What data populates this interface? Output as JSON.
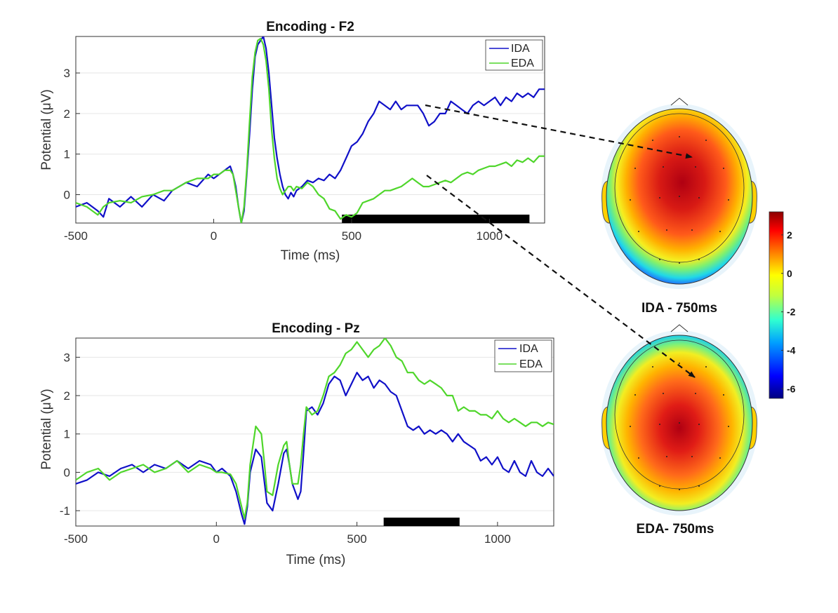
{
  "chart_data": [
    {
      "type": "line",
      "title": "Encoding - F2",
      "xlabel": "Time (ms)",
      "ylabel": "Potential (μV)",
      "xlim": [
        -500,
        1200
      ],
      "ylim": [
        -0.7,
        3.9
      ],
      "xticks": [
        -500,
        0,
        500,
        1000
      ],
      "yticks": [
        0,
        1,
        2,
        3
      ],
      "legend": "top-right",
      "series": [
        {
          "name": "IDA",
          "color": "#1010c8",
          "x": [
            -500,
            -460,
            -420,
            -400,
            -380,
            -340,
            -300,
            -260,
            -220,
            -180,
            -150,
            -100,
            -60,
            -20,
            0,
            20,
            40,
            60,
            70,
            80,
            90,
            100,
            110,
            120,
            130,
            140,
            150,
            160,
            170,
            180,
            190,
            200,
            210,
            220,
            230,
            240,
            250,
            260,
            270,
            280,
            290,
            300,
            320,
            340,
            360,
            380,
            400,
            420,
            440,
            460,
            480,
            500,
            520,
            540,
            560,
            580,
            600,
            620,
            640,
            660,
            680,
            700,
            720,
            740,
            760,
            780,
            800,
            820,
            840,
            860,
            880,
            900,
            920,
            940,
            960,
            980,
            1000,
            1020,
            1040,
            1060,
            1080,
            1100,
            1120,
            1140,
            1160,
            1180,
            1200
          ],
          "y": [
            -0.3,
            -0.2,
            -0.4,
            -0.55,
            -0.1,
            -0.3,
            -0.05,
            -0.3,
            0.0,
            -0.15,
            0.1,
            0.3,
            0.2,
            0.5,
            0.4,
            0.5,
            0.6,
            0.7,
            0.5,
            0.2,
            -0.3,
            -0.7,
            -0.4,
            0.5,
            1.5,
            2.6,
            3.4,
            3.7,
            3.8,
            3.9,
            3.6,
            3.0,
            2.2,
            1.4,
            0.9,
            0.5,
            0.2,
            0.0,
            -0.1,
            0.05,
            -0.05,
            0.1,
            0.2,
            0.35,
            0.3,
            0.4,
            0.35,
            0.5,
            0.4,
            0.6,
            0.9,
            1.2,
            1.3,
            1.5,
            1.8,
            2.0,
            2.3,
            2.2,
            2.1,
            2.3,
            2.1,
            2.2,
            2.2,
            2.2,
            2.0,
            1.7,
            1.8,
            2.0,
            2.0,
            2.3,
            2.2,
            2.1,
            2.0,
            2.2,
            2.3,
            2.2,
            2.3,
            2.4,
            2.2,
            2.4,
            2.3,
            2.5,
            2.4,
            2.5,
            2.4,
            2.6,
            2.6
          ]
        },
        {
          "name": "EDA",
          "color": "#4fd62b",
          "x": [
            -500,
            -460,
            -420,
            -400,
            -380,
            -340,
            -300,
            -260,
            -220,
            -180,
            -150,
            -100,
            -60,
            -20,
            0,
            20,
            40,
            60,
            70,
            80,
            90,
            100,
            110,
            120,
            130,
            140,
            150,
            160,
            170,
            180,
            190,
            200,
            210,
            220,
            230,
            240,
            250,
            260,
            270,
            280,
            290,
            300,
            320,
            340,
            360,
            380,
            400,
            420,
            440,
            460,
            480,
            500,
            520,
            540,
            560,
            580,
            600,
            620,
            640,
            660,
            680,
            700,
            720,
            740,
            760,
            780,
            800,
            820,
            840,
            860,
            880,
            900,
            920,
            940,
            960,
            980,
            1000,
            1020,
            1040,
            1060,
            1080,
            1100,
            1120,
            1140,
            1160,
            1180,
            1200
          ],
          "y": [
            -0.2,
            -0.3,
            -0.5,
            -0.3,
            -0.2,
            -0.15,
            -0.2,
            -0.05,
            0.0,
            0.1,
            0.1,
            0.3,
            0.4,
            0.4,
            0.5,
            0.5,
            0.6,
            0.6,
            0.5,
            0.1,
            -0.3,
            -0.7,
            -0.3,
            0.6,
            1.8,
            2.9,
            3.5,
            3.8,
            3.85,
            3.7,
            3.3,
            2.6,
            1.6,
            0.9,
            0.4,
            0.15,
            0.0,
            0.1,
            0.2,
            0.2,
            0.1,
            0.2,
            0.15,
            0.3,
            0.2,
            0.0,
            -0.1,
            -0.35,
            -0.4,
            -0.6,
            -0.5,
            -0.55,
            -0.45,
            -0.2,
            -0.15,
            -0.1,
            0.0,
            0.1,
            0.1,
            0.15,
            0.2,
            0.3,
            0.4,
            0.3,
            0.2,
            0.2,
            0.25,
            0.3,
            0.35,
            0.3,
            0.4,
            0.5,
            0.55,
            0.5,
            0.6,
            0.65,
            0.7,
            0.7,
            0.75,
            0.8,
            0.7,
            0.85,
            0.8,
            0.9,
            0.8,
            0.95,
            0.95
          ]
        }
      ],
      "significance_bar_ms": [
        465,
        1145
      ]
    },
    {
      "type": "line",
      "title": "Encoding - Pz",
      "xlabel": "Time (ms)",
      "ylabel": "Potential (μV)",
      "xlim": [
        -500,
        1200
      ],
      "ylim": [
        -1.4,
        3.5
      ],
      "xticks": [
        -500,
        0,
        500,
        1000
      ],
      "yticks": [
        -1,
        0,
        1,
        2,
        3
      ],
      "legend": "top-right",
      "series": [
        {
          "name": "IDA",
          "color": "#1010c8",
          "x": [
            -500,
            -460,
            -420,
            -380,
            -340,
            -300,
            -260,
            -220,
            -180,
            -140,
            -100,
            -60,
            -20,
            0,
            20,
            50,
            70,
            90,
            100,
            110,
            120,
            140,
            160,
            170,
            180,
            200,
            220,
            240,
            250,
            260,
            270,
            290,
            300,
            310,
            320,
            340,
            360,
            380,
            400,
            420,
            440,
            460,
            480,
            500,
            520,
            540,
            560,
            580,
            600,
            620,
            640,
            660,
            680,
            700,
            720,
            740,
            760,
            780,
            800,
            820,
            840,
            860,
            880,
            900,
            920,
            940,
            960,
            980,
            1000,
            1020,
            1040,
            1060,
            1080,
            1100,
            1120,
            1140,
            1160,
            1180,
            1200
          ],
          "y": [
            -0.3,
            -0.2,
            0.0,
            -0.1,
            0.1,
            0.2,
            0.0,
            0.2,
            0.1,
            0.3,
            0.1,
            0.3,
            0.2,
            0.0,
            0.1,
            -0.1,
            -0.5,
            -1.1,
            -1.35,
            -0.9,
            0.0,
            0.6,
            0.4,
            -0.2,
            -0.8,
            -1.0,
            -0.3,
            0.5,
            0.6,
            0.2,
            -0.3,
            -0.7,
            -0.5,
            0.5,
            1.6,
            1.7,
            1.5,
            1.8,
            2.3,
            2.5,
            2.4,
            2.0,
            2.3,
            2.6,
            2.4,
            2.5,
            2.2,
            2.4,
            2.3,
            2.1,
            2.0,
            1.6,
            1.2,
            1.1,
            1.2,
            1.0,
            1.1,
            1.0,
            1.1,
            1.0,
            0.8,
            1.0,
            0.8,
            0.7,
            0.6,
            0.3,
            0.4,
            0.2,
            0.4,
            0.1,
            0.0,
            0.3,
            0.0,
            -0.1,
            0.3,
            0.0,
            -0.1,
            0.1,
            -0.1
          ]
        },
        {
          "name": "EDA",
          "color": "#4fd62b",
          "x": [
            -500,
            -460,
            -420,
            -380,
            -340,
            -300,
            -260,
            -220,
            -180,
            -140,
            -100,
            -60,
            -20,
            0,
            20,
            50,
            70,
            90,
            100,
            110,
            120,
            140,
            160,
            170,
            180,
            200,
            220,
            240,
            250,
            260,
            270,
            290,
            300,
            310,
            320,
            340,
            360,
            380,
            400,
            420,
            440,
            460,
            480,
            500,
            520,
            540,
            560,
            580,
            600,
            620,
            640,
            660,
            680,
            700,
            720,
            740,
            760,
            780,
            800,
            820,
            840,
            860,
            880,
            900,
            920,
            940,
            960,
            980,
            1000,
            1020,
            1040,
            1060,
            1080,
            1100,
            1120,
            1140,
            1160,
            1180,
            1200
          ],
          "y": [
            -0.2,
            0.0,
            0.1,
            -0.2,
            0.0,
            0.1,
            0.2,
            0.0,
            0.1,
            0.3,
            0.0,
            0.2,
            0.1,
            0.0,
            0.0,
            -0.05,
            -0.3,
            -0.9,
            -1.2,
            -0.8,
            0.2,
            1.2,
            1.0,
            0.3,
            -0.5,
            -0.6,
            0.2,
            0.7,
            0.8,
            0.2,
            -0.3,
            -0.3,
            0.2,
            1.0,
            1.7,
            1.5,
            1.6,
            2.0,
            2.5,
            2.6,
            2.8,
            3.1,
            3.2,
            3.4,
            3.2,
            3.0,
            3.2,
            3.3,
            3.5,
            3.3,
            3.0,
            2.9,
            2.6,
            2.6,
            2.4,
            2.3,
            2.4,
            2.3,
            2.2,
            2.0,
            2.0,
            1.6,
            1.7,
            1.6,
            1.6,
            1.5,
            1.5,
            1.4,
            1.6,
            1.4,
            1.3,
            1.4,
            1.3,
            1.2,
            1.3,
            1.3,
            1.2,
            1.3,
            1.25
          ]
        }
      ],
      "significance_bar_ms": [
        595,
        865
      ]
    }
  ],
  "topomaps": {
    "items": [
      {
        "label": "IDA - 750ms"
      },
      {
        "label": "EDA- 750ms"
      }
    ],
    "colorbar": {
      "ticks": [
        "2",
        "0",
        "-2",
        "-4",
        "-6"
      ],
      "range": [
        -6.5,
        3.2
      ]
    }
  },
  "colors": {
    "ida": "#1010c8",
    "eda": "#4fd62b",
    "axis": "#333333",
    "arrow": "#111111"
  }
}
